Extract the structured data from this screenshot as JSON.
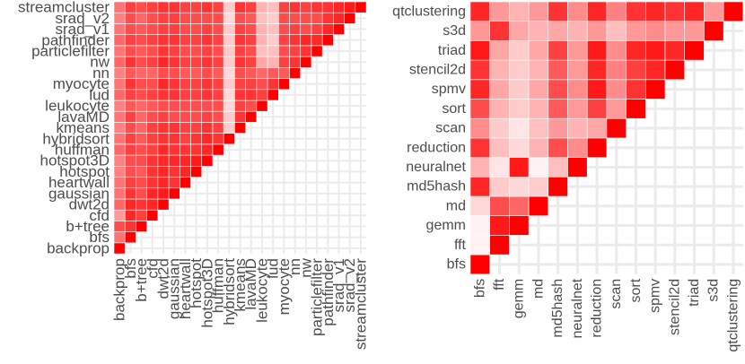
{
  "chart_data": [
    {
      "type": "heatmap",
      "shape": "lower-triangle",
      "diagonal": "max",
      "color_scale": [
        "#ffffff",
        "#ff0000"
      ],
      "grid": true,
      "legend": "none",
      "categories": [
        "backprop",
        "bfs",
        "b+tree",
        "cfd",
        "dwt2d",
        "gaussian",
        "heartwall",
        "hotspot",
        "hotspot3D",
        "huffman",
        "hybridsort",
        "kmeans",
        "lavaMD",
        "leukocyte",
        "lud",
        "myocyte",
        "nn",
        "nw",
        "particlefilter",
        "pathfinder",
        "srad_v1",
        "srad_v2",
        "streamcluster"
      ],
      "rows": [
        [],
        [
          0.55
        ],
        [
          0.7,
          0.8
        ],
        [
          0.4,
          0.85,
          0.75
        ],
        [
          0.6,
          0.85,
          0.8,
          0.85
        ],
        [
          0.55,
          0.8,
          0.7,
          0.85,
          0.9
        ],
        [
          0.55,
          0.75,
          0.7,
          0.8,
          0.85,
          0.8
        ],
        [
          0.5,
          0.7,
          0.65,
          0.8,
          0.85,
          0.8,
          0.85
        ],
        [
          0.5,
          0.7,
          0.7,
          0.8,
          0.85,
          0.85,
          0.85,
          0.9
        ],
        [
          0.6,
          0.75,
          0.7,
          0.75,
          0.85,
          0.8,
          0.8,
          0.8,
          0.85
        ],
        [
          0.55,
          0.75,
          0.65,
          0.75,
          0.8,
          0.8,
          0.75,
          0.8,
          0.85,
          0.8
        ],
        [
          0.5,
          0.7,
          0.6,
          0.75,
          0.8,
          0.8,
          0.75,
          0.75,
          0.8,
          0.75,
          0.2
        ],
        [
          0.55,
          0.75,
          0.6,
          0.7,
          0.75,
          0.7,
          0.7,
          0.7,
          0.75,
          0.7,
          0.2,
          0.8
        ],
        [
          0.5,
          0.65,
          0.6,
          0.65,
          0.7,
          0.7,
          0.7,
          0.7,
          0.7,
          0.7,
          0.15,
          0.75,
          0.7
        ],
        [
          0.6,
          0.75,
          0.7,
          0.75,
          0.8,
          0.8,
          0.75,
          0.75,
          0.8,
          0.75,
          0.15,
          0.8,
          0.8,
          0.75
        ],
        [
          0.55,
          0.8,
          0.7,
          0.7,
          0.85,
          0.8,
          0.75,
          0.75,
          0.8,
          0.75,
          0.2,
          0.75,
          0.75,
          0.7,
          0.8
        ],
        [
          0.5,
          0.65,
          0.6,
          0.6,
          0.7,
          0.7,
          0.65,
          0.65,
          0.7,
          0.65,
          0.15,
          0.7,
          0.65,
          0.6,
          0.65,
          0.65
        ],
        [
          0.6,
          0.8,
          0.7,
          0.75,
          0.85,
          0.8,
          0.75,
          0.75,
          0.8,
          0.75,
          0.2,
          0.8,
          0.75,
          0.35,
          0.3,
          0.75,
          0.8
        ],
        [
          0.55,
          0.7,
          0.65,
          0.7,
          0.8,
          0.75,
          0.7,
          0.7,
          0.75,
          0.7,
          0.2,
          0.75,
          0.7,
          0.25,
          0.25,
          0.7,
          0.75,
          0.8
        ],
        [
          0.6,
          0.75,
          0.7,
          0.75,
          0.8,
          0.8,
          0.75,
          0.75,
          0.8,
          0.75,
          0.2,
          0.8,
          0.75,
          0.3,
          0.2,
          0.75,
          0.8,
          0.85,
          0.85
        ],
        [
          0.55,
          0.7,
          0.65,
          0.7,
          0.75,
          0.75,
          0.7,
          0.7,
          0.75,
          0.7,
          0.2,
          0.75,
          0.7,
          0.3,
          0.25,
          0.7,
          0.75,
          0.7,
          0.75,
          0.85
        ],
        [
          0.5,
          0.7,
          0.6,
          0.7,
          0.75,
          0.75,
          0.7,
          0.7,
          0.7,
          0.7,
          0.15,
          0.7,
          0.65,
          0.25,
          0.2,
          0.7,
          0.7,
          0.7,
          0.7,
          0.8,
          0.85
        ],
        [
          0.55,
          0.75,
          0.7,
          0.75,
          0.8,
          0.8,
          0.75,
          0.75,
          0.8,
          0.75,
          0.2,
          0.8,
          0.75,
          0.3,
          0.25,
          0.75,
          0.8,
          0.75,
          0.8,
          0.8,
          0.85,
          0.9
        ]
      ]
    },
    {
      "type": "heatmap",
      "shape": "lower-triangle",
      "diagonal": "max",
      "color_scale": [
        "#ffffff",
        "#ff0000"
      ],
      "grid": true,
      "legend": "none",
      "categories": [
        "bfs",
        "fft",
        "gemm",
        "md",
        "md5hash",
        "neuralnet",
        "reduction",
        "scan",
        "sort",
        "spmv",
        "stencil2d",
        "triad",
        "s3d",
        "qtclustering"
      ],
      "rows": [
        [],
        [
          0.05
        ],
        [
          0.05,
          0.9
        ],
        [
          0.15,
          0.7,
          0.6
        ],
        [
          0.85,
          0.2,
          0.15,
          0.2
        ],
        [
          0.3,
          0.1,
          0.9,
          0.05,
          0.25
        ],
        [
          0.8,
          0.25,
          0.15,
          0.3,
          0.7,
          0.45
        ],
        [
          0.45,
          0.2,
          0.1,
          0.25,
          0.4,
          0.3,
          0.35
        ],
        [
          0.7,
          0.3,
          0.2,
          0.3,
          0.65,
          0.4,
          0.75,
          0.4
        ],
        [
          0.85,
          0.35,
          0.2,
          0.35,
          0.7,
          0.45,
          0.9,
          0.45,
          0.8
        ],
        [
          0.8,
          0.3,
          0.2,
          0.3,
          0.65,
          0.4,
          0.85,
          0.5,
          0.75,
          0.85
        ],
        [
          0.9,
          0.35,
          0.2,
          0.35,
          0.75,
          0.4,
          0.9,
          0.45,
          0.85,
          0.9,
          0.85
        ],
        [
          0.4,
          0.8,
          0.35,
          0.3,
          0.35,
          0.3,
          0.4,
          0.25,
          0.4,
          0.45,
          0.4,
          0.4
        ],
        [
          0.85,
          0.4,
          0.3,
          0.4,
          0.8,
          0.45,
          0.85,
          0.5,
          0.8,
          0.85,
          0.8,
          0.85,
          0.4
        ]
      ]
    }
  ]
}
